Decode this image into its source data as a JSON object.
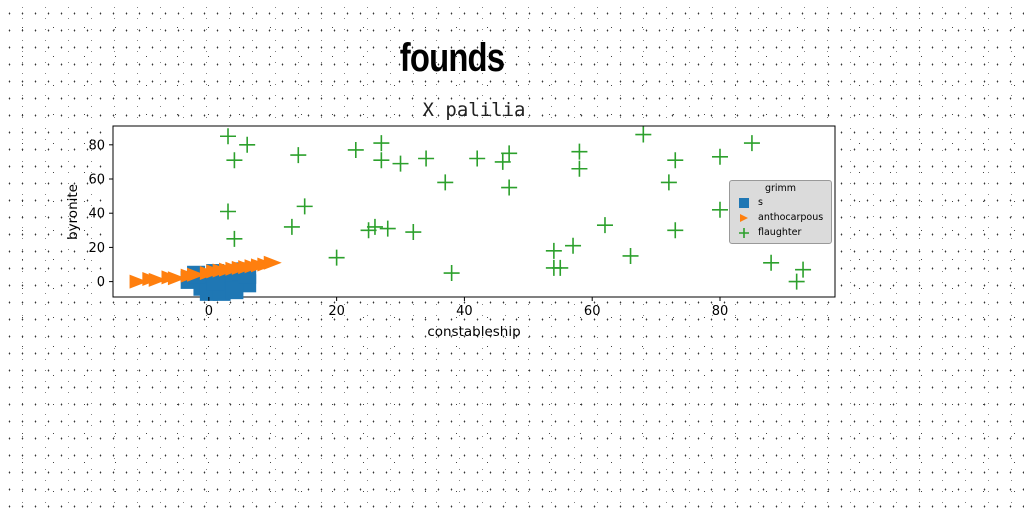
{
  "suptitle": "founds",
  "chart_data": {
    "type": "scatter",
    "title": "X palilia",
    "xlabel": "constableship",
    "ylabel": "byronite",
    "xlim": [
      -15,
      98
    ],
    "ylim": [
      -9,
      91
    ],
    "xticks": [
      0,
      20,
      40,
      60,
      80
    ],
    "yticks": [
      0,
      20,
      40,
      60,
      80
    ],
    "grid": false,
    "legend": {
      "title": "grimm",
      "placement": "center-right"
    },
    "series": [
      {
        "name": "s",
        "marker": "square",
        "color": "#1f77b4",
        "points": [
          [
            -3,
            1
          ],
          [
            -1,
            -3
          ],
          [
            0,
            2
          ],
          [
            1,
            5
          ],
          [
            2,
            -2
          ],
          [
            3,
            3
          ],
          [
            4,
            0
          ],
          [
            5,
            6
          ],
          [
            6,
            -1
          ],
          [
            0,
            -6
          ],
          [
            2,
            -6
          ],
          [
            4,
            -5
          ],
          [
            -2,
            4
          ],
          [
            1,
            0
          ],
          [
            6,
            4
          ]
        ]
      },
      {
        "name": "anthocarpous",
        "marker": "triangle-right",
        "color": "#ff7f0e",
        "points": [
          [
            -11,
            0
          ],
          [
            -8,
            1
          ],
          [
            -5,
            2
          ],
          [
            -2,
            4
          ],
          [
            0,
            5
          ],
          [
            1,
            6
          ],
          [
            3,
            7
          ],
          [
            5,
            8
          ],
          [
            7,
            9
          ],
          [
            9,
            10
          ],
          [
            10,
            11
          ],
          [
            -9,
            1.5
          ],
          [
            -6,
            2.5
          ],
          [
            -3,
            3.5
          ],
          [
            2,
            6.5
          ],
          [
            4,
            7.5
          ],
          [
            6,
            8.5
          ],
          [
            8,
            9.5
          ]
        ]
      },
      {
        "name": "flaughter",
        "marker": "plus",
        "color": "#2ca02c",
        "points": [
          [
            3,
            85
          ],
          [
            6,
            80
          ],
          [
            4,
            71
          ],
          [
            3,
            41
          ],
          [
            4,
            25
          ],
          [
            14,
            74
          ],
          [
            15,
            44
          ],
          [
            13,
            32
          ],
          [
            20,
            14
          ],
          [
            23,
            77
          ],
          [
            25,
            30
          ],
          [
            26,
            32
          ],
          [
            27,
            81
          ],
          [
            27,
            71
          ],
          [
            28,
            31
          ],
          [
            30,
            69
          ],
          [
            32,
            29
          ],
          [
            34,
            72
          ],
          [
            37,
            58
          ],
          [
            38,
            5
          ],
          [
            42,
            72
          ],
          [
            46,
            70
          ],
          [
            47,
            75
          ],
          [
            47,
            55
          ],
          [
            54,
            18
          ],
          [
            54,
            8
          ],
          [
            55,
            8
          ],
          [
            57,
            21
          ],
          [
            58,
            76
          ],
          [
            58,
            66
          ],
          [
            62,
            33
          ],
          [
            66,
            15
          ],
          [
            68,
            86
          ],
          [
            72,
            58
          ],
          [
            73,
            71
          ],
          [
            73,
            30
          ],
          [
            80,
            73
          ],
          [
            80,
            42
          ],
          [
            85,
            81
          ],
          [
            88,
            11
          ],
          [
            92,
            0
          ],
          [
            93,
            7
          ]
        ]
      }
    ]
  }
}
